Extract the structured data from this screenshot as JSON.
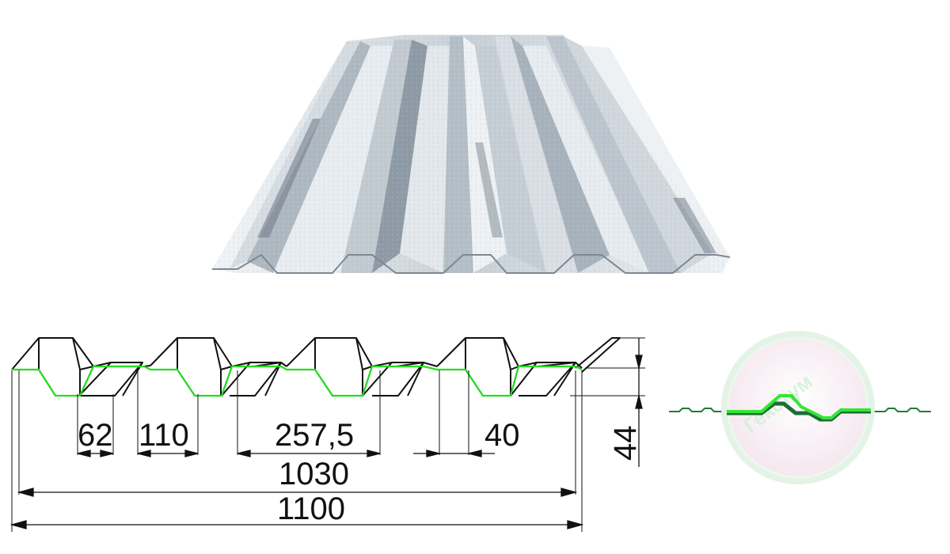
{
  "dimensions": {
    "d62": "62",
    "d110": "110",
    "d257": "257,5",
    "d40": "40",
    "d1030": "1030",
    "d1100": "1100",
    "d44": "44"
  },
  "watermark": "Гекстум",
  "colors": {
    "profile_outline": "#111111",
    "profile_highlight": "#22dd22",
    "sheet_light": "#e6ebef",
    "sheet_mid": "#b9c2ca",
    "sheet_dark": "#7e8a95",
    "lens_ring": "#e4f3e6",
    "lens_fill": "#f7eef4",
    "overlap_dark": "#1f7a3a"
  }
}
